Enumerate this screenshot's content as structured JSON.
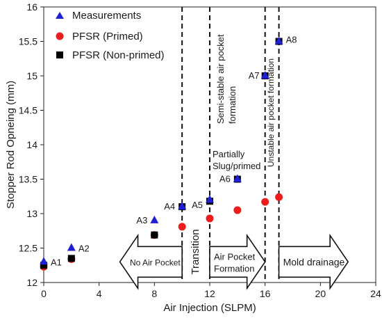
{
  "chart_data": {
    "type": "scatter",
    "xlabel": "Air Injection (SLPM)",
    "ylabel": "Stopper Rod Opneing (mm)",
    "xlim": [
      0,
      24
    ],
    "ylim": [
      12,
      16
    ],
    "xticks": [
      "0",
      "4",
      "8",
      "12",
      "16",
      "20",
      "24"
    ],
    "yticks": [
      "12",
      "12.5",
      "13",
      "13.5",
      "14",
      "14.5",
      "15",
      "15.5",
      "16"
    ],
    "grid": false,
    "legend_position": "top-left",
    "series": [
      {
        "name": "Measurements",
        "marker": "triangle",
        "color": "#1f1fd6",
        "points": [
          {
            "x": 0,
            "y": 12.3
          },
          {
            "x": 2,
            "y": 12.5
          },
          {
            "x": 8,
            "y": 12.9
          },
          {
            "x": 10,
            "y": 13.1
          },
          {
            "x": 12,
            "y": 13.2
          },
          {
            "x": 14,
            "y": 13.5
          },
          {
            "x": 16,
            "y": 15.0
          },
          {
            "x": 17,
            "y": 15.5
          }
        ]
      },
      {
        "name": "PFSR (Primed)",
        "marker": "circle",
        "color": "#ee1c1c",
        "points": [
          {
            "x": 0,
            "y": 12.23
          },
          {
            "x": 2,
            "y": 12.34
          },
          {
            "x": 8,
            "y": 12.69
          },
          {
            "x": 10,
            "y": 12.81
          },
          {
            "x": 12,
            "y": 12.93
          },
          {
            "x": 14,
            "y": 13.05
          },
          {
            "x": 16,
            "y": 13.17
          },
          {
            "x": 17,
            "y": 13.24
          }
        ]
      },
      {
        "name": "PFSR (Non-primed)",
        "marker": "square",
        "color": "#000000",
        "points": [
          {
            "x": 0,
            "y": 12.25
          },
          {
            "x": 2,
            "y": 12.35
          },
          {
            "x": 8,
            "y": 12.69
          },
          {
            "x": 10,
            "y": 13.1
          },
          {
            "x": 12,
            "y": 13.18
          },
          {
            "x": 14,
            "y": 13.5
          },
          {
            "x": 16,
            "y": 15.0
          },
          {
            "x": 17,
            "y": 15.5
          }
        ]
      }
    ],
    "point_labels": [
      {
        "text": "A1",
        "x": 0,
        "y": 12.3
      },
      {
        "text": "A2",
        "x": 2,
        "y": 12.5
      },
      {
        "text": "A3",
        "x": 8,
        "y": 12.9
      },
      {
        "text": "A4",
        "x": 10,
        "y": 13.1
      },
      {
        "text": "A5",
        "x": 12,
        "y": 13.2
      },
      {
        "text": "A6",
        "x": 14,
        "y": 13.5
      },
      {
        "text": "A7",
        "x": 16,
        "y": 15.0
      },
      {
        "text": "A8",
        "x": 17,
        "y": 15.5
      }
    ],
    "vertical_lines": [
      10,
      12,
      16,
      17
    ],
    "annotations": {
      "semi_stable_line1": "Semi-stable air pocket",
      "semi_stable_line2": "formation",
      "unstable": "Unstable air pocket formation",
      "partially_line1": "Partially",
      "partially_line2": "Slug/primed",
      "transition": "Transition"
    },
    "region_arrows": [
      {
        "label": "No Air Pocket",
        "direction": "left",
        "x_start": 5.5,
        "x_end": 10
      },
      {
        "label_line1": "Air Pocket",
        "label_line2": "Formation",
        "direction": "right",
        "x_start": 12,
        "x_end": 16
      },
      {
        "label": "Mold drainage",
        "direction": "right",
        "x_start": 17,
        "x_end": 22
      }
    ]
  }
}
